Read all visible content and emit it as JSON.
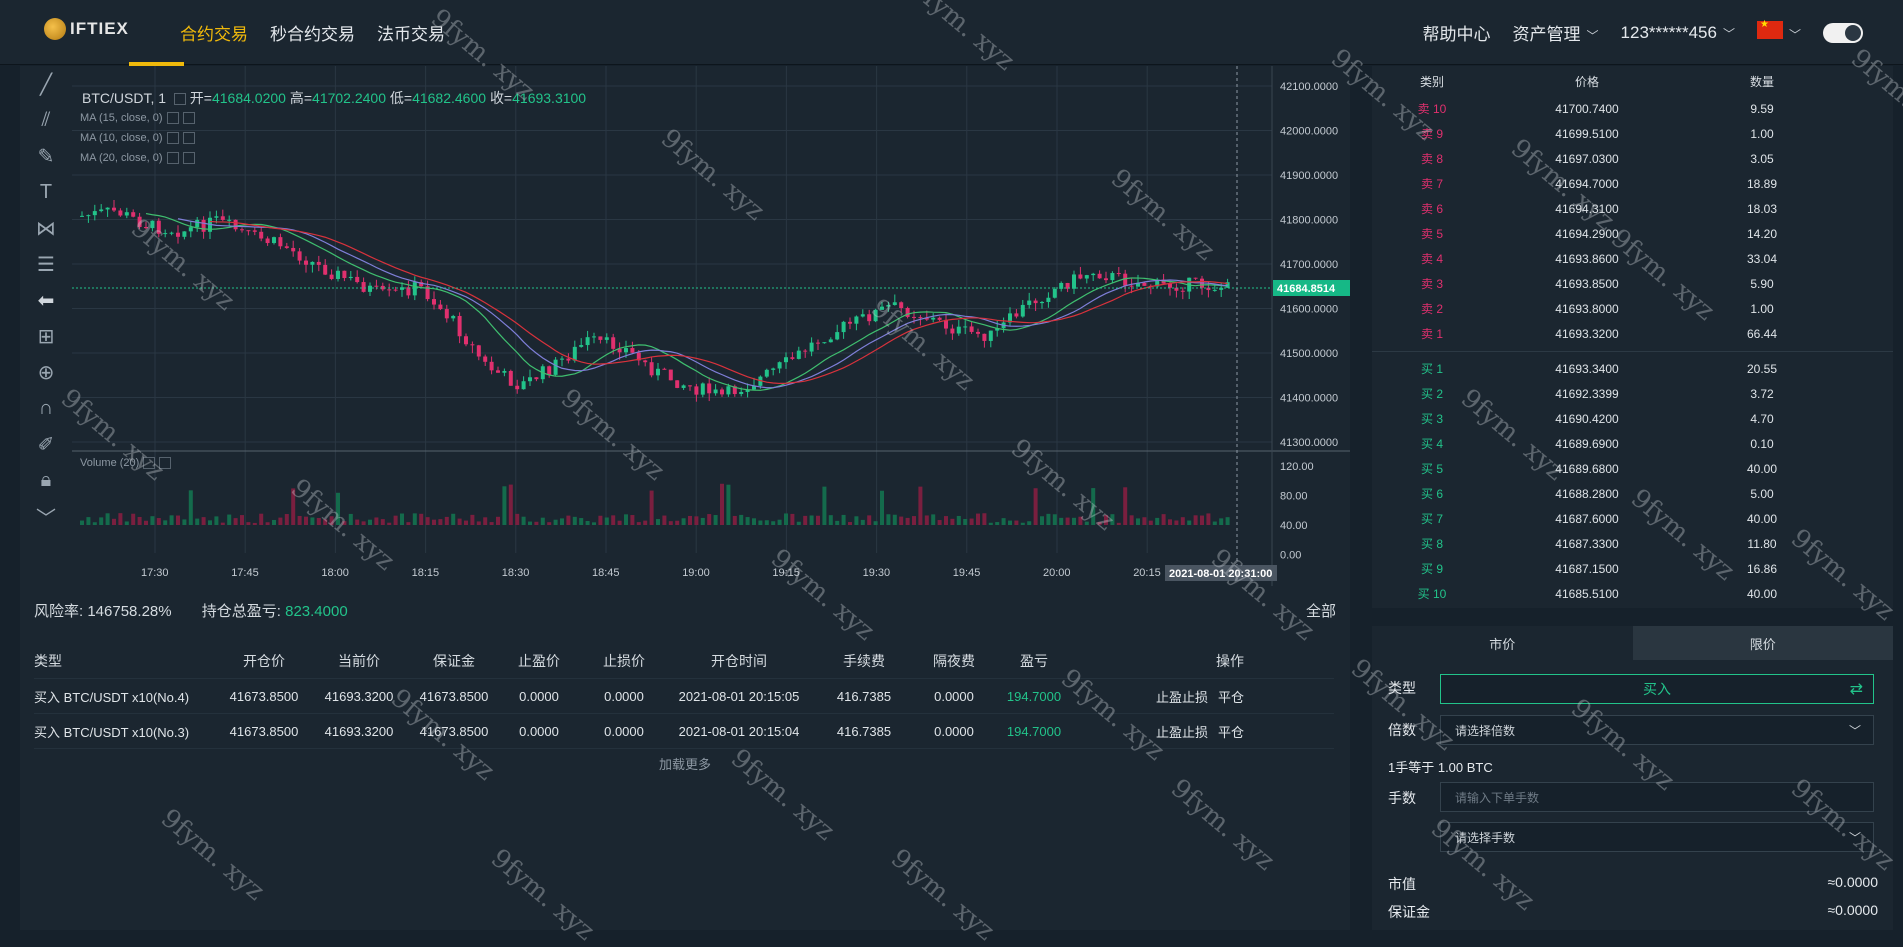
{
  "logo": {
    "text": "IFTIEX"
  },
  "nav": {
    "items": [
      "合约交易",
      "秒合约交易",
      "法币交易"
    ],
    "active_index": 0
  },
  "right_nav": {
    "help": "帮助中心",
    "assets": "资产管理",
    "account": "123******456"
  },
  "chart": {
    "symbol": "BTC/USDT, 1",
    "open_label": "开=",
    "open": "41684.0200",
    "high_label": "高=",
    "high": "41702.2400",
    "low_label": "低=",
    "low": "41682.4600",
    "close_label": "收=",
    "close": "41693.3100",
    "ma": [
      "MA (15, close, 0)",
      "MA (10, close, 0)",
      "MA (20, close, 0)"
    ],
    "volume_label": "Volume (20)",
    "last_price_tag": "41684.8514",
    "time_tag": "2021-08-01 20:31:00",
    "price_ticks": [
      "42100.0000",
      "42000.0000",
      "41900.0000",
      "41800.0000",
      "41700.0000",
      "41600.0000",
      "41500.0000",
      "41400.0000",
      "41300.0000"
    ],
    "vol_ticks": [
      "120.00",
      "80.00",
      "40.00",
      "0.00"
    ],
    "time_ticks": [
      "17:30",
      "17:45",
      "18:00",
      "18:15",
      "18:30",
      "18:45",
      "19:00",
      "19:15",
      "19:30",
      "19:45",
      "20:00",
      "20:15"
    ],
    "colors": {
      "up": "#22c38a",
      "down": "#e0306e"
    }
  },
  "orderbook": {
    "headers": [
      "类别",
      "价格",
      "数量"
    ],
    "asks": [
      [
        "卖 10",
        "41700.7400",
        "9.59"
      ],
      [
        "卖 9",
        "41699.5100",
        "1.00"
      ],
      [
        "卖 8",
        "41697.0300",
        "3.05"
      ],
      [
        "卖 7",
        "41694.7000",
        "18.89"
      ],
      [
        "卖 6",
        "41694.3100",
        "18.03"
      ],
      [
        "卖 5",
        "41694.2900",
        "14.20"
      ],
      [
        "卖 4",
        "41693.8600",
        "33.04"
      ],
      [
        "卖 3",
        "41693.8500",
        "5.90"
      ],
      [
        "卖 2",
        "41693.8000",
        "1.00"
      ],
      [
        "卖 1",
        "41693.3200",
        "66.44"
      ]
    ],
    "bids": [
      [
        "买 1",
        "41693.3400",
        "20.55"
      ],
      [
        "买 2",
        "41692.3399",
        "3.72"
      ],
      [
        "买 3",
        "41690.4200",
        "4.70"
      ],
      [
        "买 4",
        "41689.6900",
        "0.10"
      ],
      [
        "买 5",
        "41689.6800",
        "40.00"
      ],
      [
        "买 6",
        "41688.2800",
        "5.00"
      ],
      [
        "买 7",
        "41687.6000",
        "40.00"
      ],
      [
        "买 8",
        "41687.3300",
        "11.80"
      ],
      [
        "买 9",
        "41687.1500",
        "16.86"
      ],
      [
        "买 10",
        "41685.5100",
        "40.00"
      ]
    ]
  },
  "positions": {
    "risk_label": "风险率:",
    "risk_value": "146758.28%",
    "pnl_label": "持仓总盈亏:",
    "pnl_value": "823.4000",
    "all_label": "全部",
    "headers": [
      "类型",
      "开仓价",
      "当前价",
      "保证金",
      "止盈价",
      "止损价",
      "开仓时间",
      "手续费",
      "隔夜费",
      "盈亏",
      "操作"
    ],
    "rows": [
      [
        "买入 BTC/USDT x10(No.4)",
        "41673.8500",
        "41693.3200",
        "41673.8500",
        "0.0000",
        "0.0000",
        "2021-08-01 20:15:05",
        "416.7385",
        "0.0000",
        "194.7000",
        "止盈止损",
        "平仓"
      ],
      [
        "买入 BTC/USDT x10(No.3)",
        "41673.8500",
        "41693.3200",
        "41673.8500",
        "0.0000",
        "0.0000",
        "2021-08-01 20:15:04",
        "416.7385",
        "0.0000",
        "194.7000",
        "止盈止损",
        "平仓"
      ]
    ],
    "load_more": "加载更多"
  },
  "trade": {
    "tabs": [
      "市价",
      "限价"
    ],
    "selected_tab": 0,
    "type_label": "类型",
    "type_value": "买入",
    "leverage_label": "倍数",
    "leverage_placeholder": "请选择倍数",
    "lot_info": "1手等于 1.00 BTC",
    "lots_label": "手数",
    "lots_placeholder": "请输入下单手数",
    "lots_select": "请选择手数",
    "market_value_label": "市值",
    "market_value": "≈0.0000",
    "margin_label": "保证金",
    "margin_value": "≈0.0000"
  },
  "watermark": "9fym. xyz"
}
